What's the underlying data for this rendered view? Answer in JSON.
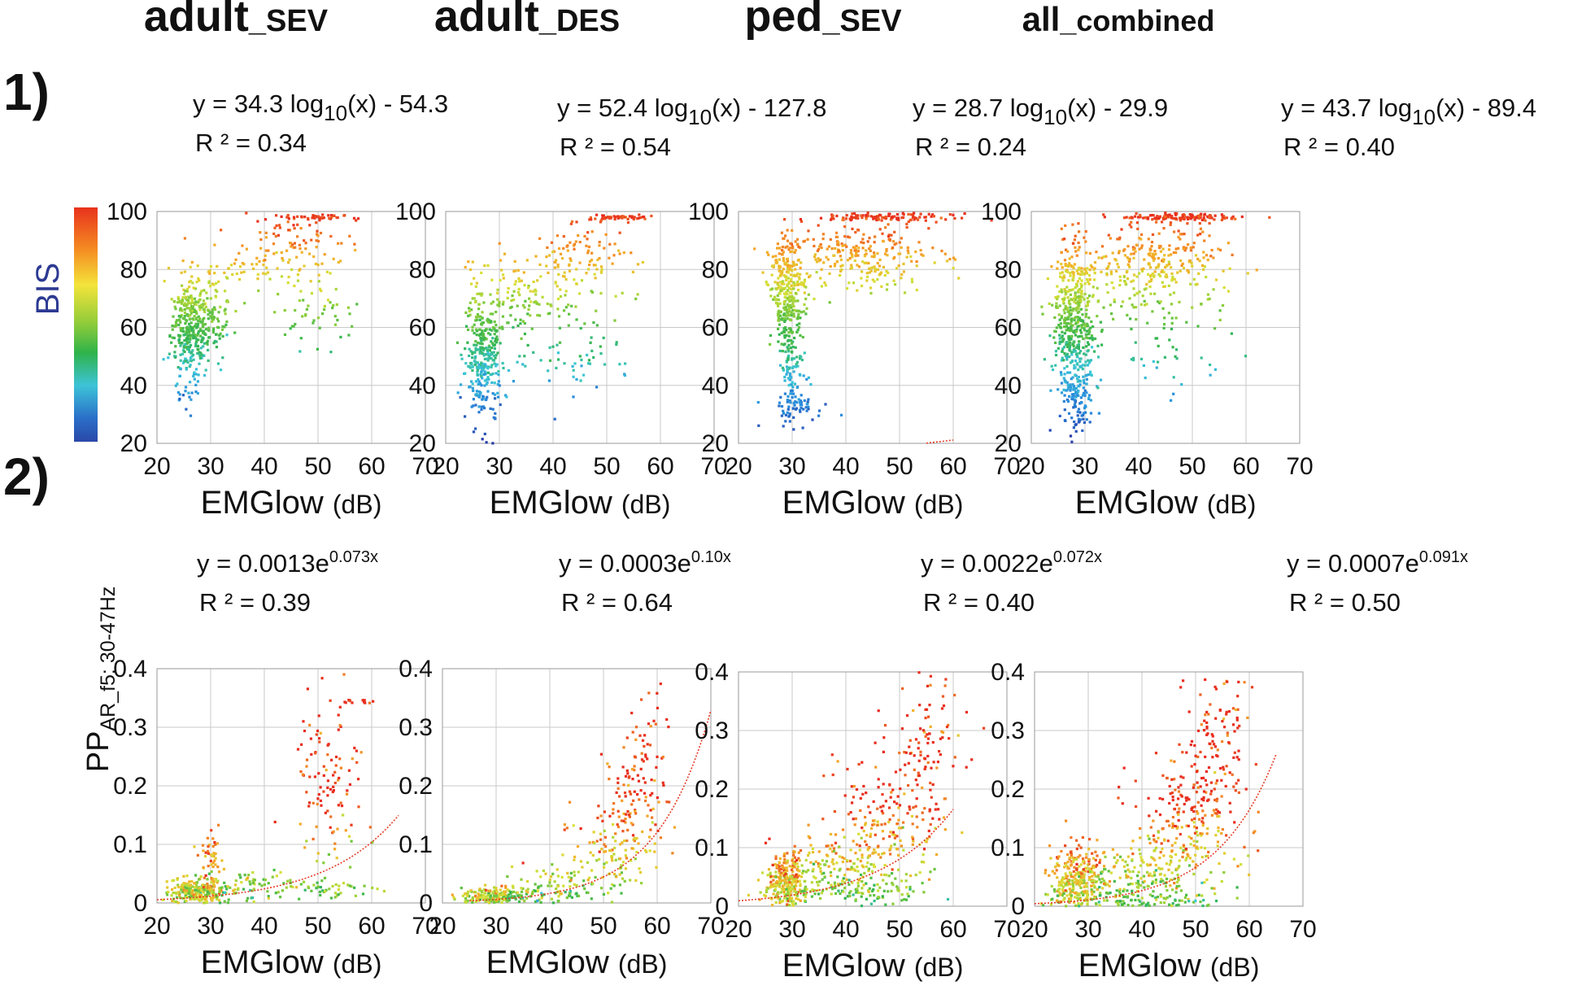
{
  "columns": [
    {
      "main": "adult",
      "sub": "_SEV"
    },
    {
      "main": "adult",
      "sub": "_DES"
    },
    {
      "main": "ped",
      "sub": "_SEV"
    },
    {
      "main": "all",
      "sub": "_combined"
    }
  ],
  "row_labels": [
    "1)",
    "2)"
  ],
  "colorbar": {
    "label": "BIS",
    "label_color": "#2c3a92"
  },
  "row1_ylabel": "",
  "row2_ylabel": {
    "main": "PP",
    "sub": "AR_f5: 30-47Hz"
  },
  "xlabel": {
    "main": "EMGlow",
    "unit": "(dB)"
  },
  "colors": {
    "fit": "#e63b26",
    "grid": "#c8c8c8",
    "axis": "#333333"
  },
  "chart_data": [
    {
      "type": "scatter",
      "panel": "adult_SEV BIS",
      "equation": {
        "pre": "y = 34.3 log",
        "sub": "10",
        "post": "(x) - 54.3"
      },
      "r2": "R ² = 0.34",
      "model": "log",
      "a": 34.3,
      "b": -54.3,
      "xlim": [
        20,
        70
      ],
      "ylim": [
        20,
        100
      ],
      "xticks": [
        20,
        30,
        40,
        50,
        60,
        70
      ],
      "yticks": [
        20,
        40,
        60,
        80,
        100
      ],
      "fit_x": [
        20,
        65
      ],
      "clusters": [
        {
          "cx": 26,
          "cy": 58,
          "sx": 1.8,
          "sy": 10,
          "n": 320
        },
        {
          "cx": 30,
          "cy": 62,
          "sx": 2,
          "sy": 8,
          "n": 110
        },
        {
          "cx": 45,
          "cy": 86,
          "sx": 5,
          "sy": 7,
          "n": 110
        },
        {
          "cx": 50,
          "cy": 98,
          "sx": 3.5,
          "sy": 0.5,
          "n": 40
        },
        {
          "cx": 49,
          "cy": 65,
          "sx": 4,
          "sy": 6,
          "n": 45
        },
        {
          "cx": 34,
          "cy": 80,
          "sx": 4,
          "sy": 2,
          "n": 30
        }
      ]
    },
    {
      "type": "scatter",
      "panel": "adult_DES BIS",
      "equation": {
        "pre": "y = 52.4 log",
        "sub": "10",
        "post": "(x) - 127.8"
      },
      "r2": "R ² = 0.54",
      "model": "log",
      "a": 52.4,
      "b": -127.8,
      "xlim": [
        20,
        70
      ],
      "ylim": [
        20,
        100
      ],
      "xticks": [
        20,
        30,
        40,
        50,
        60,
        70
      ],
      "yticks": [
        20,
        40,
        60,
        80,
        100
      ],
      "fit_x": [
        25,
        65
      ],
      "clusters": [
        {
          "cx": 27,
          "cy": 50,
          "sx": 1.6,
          "sy": 12,
          "n": 330
        },
        {
          "cx": 34,
          "cy": 68,
          "sx": 4,
          "sy": 8,
          "n": 110
        },
        {
          "cx": 46,
          "cy": 84,
          "sx": 5,
          "sy": 7,
          "n": 110
        },
        {
          "cx": 52,
          "cy": 98,
          "sx": 3,
          "sy": 0.5,
          "n": 45
        },
        {
          "cx": 44,
          "cy": 50,
          "sx": 6,
          "sy": 8,
          "n": 60
        }
      ]
    },
    {
      "type": "scatter",
      "panel": "ped_SEV BIS",
      "equation": {
        "pre": "y = 28.7 log",
        "sub": "10",
        "post": "(x) - 29.9"
      },
      "r2": "R ² = 0.24",
      "model": "log",
      "a": 28.7,
      "b": -29.9,
      "xlim": [
        20,
        70
      ],
      "ylim": [
        20,
        100
      ],
      "xticks": [
        20,
        30,
        40,
        50,
        60,
        70
      ],
      "yticks": [
        20,
        40,
        60,
        80,
        100
      ],
      "fit_x": [
        20,
        60
      ],
      "clusters": [
        {
          "cx": 29,
          "cy": 72,
          "sx": 1.5,
          "sy": 9,
          "n": 300
        },
        {
          "cx": 30,
          "cy": 45,
          "sx": 1.2,
          "sy": 9,
          "n": 110
        },
        {
          "cx": 42,
          "cy": 84,
          "sx": 7,
          "sy": 6,
          "n": 260
        },
        {
          "cx": 48,
          "cy": 98,
          "sx": 6,
          "sy": 0.6,
          "n": 110
        },
        {
          "cx": 31,
          "cy": 32,
          "sx": 3,
          "sy": 3,
          "n": 40
        }
      ]
    },
    {
      "type": "scatter",
      "panel": "all_combined BIS",
      "equation": {
        "pre": "y = 43.7 log",
        "sub": "10",
        "post": "(x) - 89.4"
      },
      "r2": "R ² = 0.40",
      "model": "log",
      "a": 43.7,
      "b": -89.4,
      "xlim": [
        20,
        70
      ],
      "ylim": [
        20,
        100
      ],
      "xticks": [
        20,
        30,
        40,
        50,
        60,
        70
      ],
      "yticks": [
        20,
        40,
        60,
        80,
        100
      ],
      "fit_x": [
        20,
        65
      ],
      "clusters": [
        {
          "cx": 28,
          "cy": 62,
          "sx": 2,
          "sy": 14,
          "n": 480
        },
        {
          "cx": 28,
          "cy": 35,
          "sx": 1.5,
          "sy": 6,
          "n": 80
        },
        {
          "cx": 42,
          "cy": 82,
          "sx": 7,
          "sy": 8,
          "n": 300
        },
        {
          "cx": 48,
          "cy": 98,
          "sx": 6,
          "sy": 0.6,
          "n": 120
        },
        {
          "cx": 45,
          "cy": 55,
          "sx": 6,
          "sy": 8,
          "n": 60
        }
      ]
    },
    {
      "type": "scatter",
      "panel": "adult_SEV PP",
      "equation": {
        "pre": "y = 0.0013e",
        "sup": "0.073x"
      },
      "r2": "R ² = 0.39",
      "model": "exp",
      "a": 0.0013,
      "b": 0.073,
      "xlim": [
        20,
        70
      ],
      "ylim": [
        0,
        0.4
      ],
      "xticks": [
        20,
        30,
        40,
        50,
        60,
        70
      ],
      "yticks": [
        0,
        0.1,
        0.2,
        0.3,
        0.4
      ],
      "ytick_labels": [
        "0",
        "0.1",
        "0.2",
        "0.3",
        "0.4"
      ],
      "fit_x": [
        20,
        65
      ],
      "clusters": [
        {
          "cx": 27,
          "cy": 0.02,
          "sx": 3,
          "sy": 0.012,
          "n": 260
        },
        {
          "cx": 30,
          "cy": 0.06,
          "sx": 1,
          "sy": 0.03,
          "n": 60
        },
        {
          "cx": 38,
          "cy": 0.03,
          "sx": 5,
          "sy": 0.015,
          "n": 70
        },
        {
          "cx": 52,
          "cy": 0.2,
          "sx": 3.5,
          "sy": 0.07,
          "n": 110
        },
        {
          "cx": 52,
          "cy": 0.02,
          "sx": 4,
          "sy": 0.01,
          "n": 40
        },
        {
          "cx": 58,
          "cy": 0.345,
          "sx": 2,
          "sy": 0.002,
          "n": 12
        }
      ]
    },
    {
      "type": "scatter",
      "panel": "adult_DES PP",
      "equation": {
        "pre": "y = 0.0003e",
        "sup": "0.10x"
      },
      "r2": "R ² = 0.64",
      "model": "exp",
      "a": 0.0003,
      "b": 0.1,
      "xlim": [
        20,
        70
      ],
      "ylim": [
        0,
        0.4
      ],
      "xticks": [
        20,
        30,
        40,
        50,
        60,
        70
      ],
      "yticks": [
        0,
        0.1,
        0.2,
        0.3,
        0.4
      ],
      "ytick_labels": [
        "0",
        "0.1",
        "0.2",
        "0.3",
        "0.4"
      ],
      "fit_x": [
        25,
        70
      ],
      "clusters": [
        {
          "cx": 30,
          "cy": 0.01,
          "sx": 4,
          "sy": 0.008,
          "n": 230
        },
        {
          "cx": 42,
          "cy": 0.03,
          "sx": 4,
          "sy": 0.02,
          "n": 80
        },
        {
          "cx": 50,
          "cy": 0.08,
          "sx": 3,
          "sy": 0.04,
          "n": 90
        },
        {
          "cx": 56,
          "cy": 0.17,
          "sx": 3,
          "sy": 0.06,
          "n": 130
        },
        {
          "cx": 58,
          "cy": 0.3,
          "sx": 1.5,
          "sy": 0.04,
          "n": 20
        }
      ]
    },
    {
      "type": "scatter",
      "panel": "ped_SEV PP",
      "equation": {
        "pre": "y = 0.0022e",
        "sup": "0.072x"
      },
      "r2": "R ² = 0.40",
      "model": "exp",
      "a": 0.0022,
      "b": 0.072,
      "xlim": [
        20,
        70
      ],
      "ylim": [
        0,
        0.4
      ],
      "xticks": [
        20,
        30,
        40,
        50,
        60,
        70
      ],
      "yticks": [
        0,
        0.1,
        0.2,
        0.3,
        0.4
      ],
      "ytick_labels": [
        "0",
        "0.1",
        "0.2",
        "0.3",
        "0.4"
      ],
      "fit_x": [
        20,
        60
      ],
      "clusters": [
        {
          "cx": 29,
          "cy": 0.04,
          "sx": 1.8,
          "sy": 0.025,
          "n": 260
        },
        {
          "cx": 38,
          "cy": 0.06,
          "sx": 5,
          "sy": 0.03,
          "n": 150
        },
        {
          "cx": 48,
          "cy": 0.13,
          "sx": 5,
          "sy": 0.06,
          "n": 220
        },
        {
          "cx": 55,
          "cy": 0.28,
          "sx": 3,
          "sy": 0.07,
          "n": 90
        },
        {
          "cx": 40,
          "cy": 0.02,
          "sx": 8,
          "sy": 0.01,
          "n": 80
        }
      ]
    },
    {
      "type": "scatter",
      "panel": "all_combined PP",
      "equation": {
        "pre": "y = 0.0007e",
        "sup": "0.091x"
      },
      "r2": "R ² = 0.50",
      "model": "exp",
      "a": 0.0007,
      "b": 0.091,
      "xlim": [
        20,
        70
      ],
      "ylim": [
        0,
        0.4
      ],
      "xticks": [
        20,
        30,
        40,
        50,
        60,
        70
      ],
      "yticks": [
        0,
        0.1,
        0.2,
        0.3,
        0.4
      ],
      "ytick_labels": [
        "0",
        "0.1",
        "0.2",
        "0.3",
        "0.4"
      ],
      "fit_x": [
        20,
        65
      ],
      "clusters": [
        {
          "cx": 28,
          "cy": 0.04,
          "sx": 2.5,
          "sy": 0.03,
          "n": 320
        },
        {
          "cx": 40,
          "cy": 0.05,
          "sx": 6,
          "sy": 0.03,
          "n": 180
        },
        {
          "cx": 48,
          "cy": 0.14,
          "sx": 5,
          "sy": 0.06,
          "n": 240
        },
        {
          "cx": 54,
          "cy": 0.29,
          "sx": 3,
          "sy": 0.07,
          "n": 110
        },
        {
          "cx": 40,
          "cy": 0.01,
          "sx": 8,
          "sy": 0.008,
          "n": 100
        }
      ]
    }
  ]
}
